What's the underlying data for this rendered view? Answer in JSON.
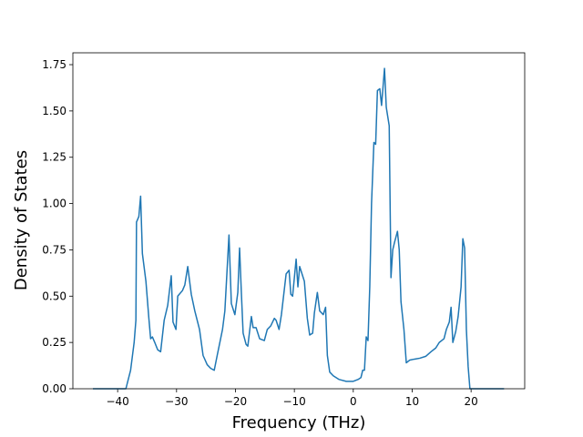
{
  "chart_data": {
    "type": "line",
    "xlabel": "Frequency (THz)",
    "ylabel": "Density of States",
    "color": "#1f77b4",
    "grid": false,
    "xlim": [
      -47.6,
      29.1
    ],
    "ylim": [
      0,
      1.814
    ],
    "xticks": [
      {
        "value": -40,
        "label": "−40"
      },
      {
        "value": -30,
        "label": "−30"
      },
      {
        "value": -20,
        "label": "−20"
      },
      {
        "value": -10,
        "label": "−10"
      },
      0,
      10,
      20
    ],
    "yticks": [
      {
        "value": 0,
        "label": "0.00"
      },
      {
        "value": 0.25,
        "label": "0.25"
      },
      {
        "value": 0.5,
        "label": "0.50"
      },
      {
        "value": 0.75,
        "label": "0.75"
      },
      {
        "value": 1,
        "label": "1.00"
      },
      {
        "value": 1.25,
        "label": "1.25"
      },
      {
        "value": 1.5,
        "label": "1.50"
      },
      {
        "value": 1.75,
        "label": "1.75"
      }
    ],
    "x": [
      -44.2,
      -38.6,
      -37.8,
      -37.2,
      -36.9,
      -36.8,
      -36.4,
      -36.1,
      -35.8,
      -35.2,
      -34.7,
      -34.4,
      -34.1,
      -33.7,
      -33.2,
      -32.7,
      -32.1,
      -31.5,
      -30.9,
      -30.6,
      -30.1,
      -29.8,
      -29.0,
      -28.6,
      -28.1,
      -27.5,
      -26.9,
      -26.1,
      -25.5,
      -24.8,
      -24.2,
      -23.6,
      -23.1,
      -22.2,
      -21.8,
      -21.1,
      -20.7,
      -20.1,
      -19.6,
      -19.3,
      -19.0,
      -18.7,
      -18.2,
      -17.9,
      -17.3,
      -17.0,
      -16.5,
      -15.9,
      -15.1,
      -14.6,
      -14.0,
      -13.4,
      -13.1,
      -12.6,
      -12.2,
      -11.4,
      -10.9,
      -10.6,
      -10.3,
      -9.7,
      -9.4,
      -9.1,
      -8.3,
      -7.8,
      -7.4,
      -6.9,
      -6.6,
      -6.1,
      -5.7,
      -5.1,
      -4.7,
      -4.4,
      -4.0,
      -3.4,
      -2.4,
      -1.2,
      0.0,
      0.8,
      1.3,
      1.6,
      1.9,
      2.2,
      2.5,
      2.8,
      3.1,
      3.5,
      3.8,
      4.1,
      4.5,
      4.8,
      5.3,
      5.6,
      6.1,
      6.4,
      6.7,
      7.0,
      7.5,
      7.8,
      8.1,
      8.6,
      9.0,
      9.6,
      10.4,
      11.3,
      12.3,
      13.2,
      14.0,
      14.6,
      15.4,
      15.8,
      16.3,
      16.6,
      16.9,
      17.4,
      17.8,
      18.3,
      18.6,
      18.9,
      19.2,
      19.5,
      19.8,
      25.6
    ],
    "values": [
      0,
      0,
      0.1,
      0.25,
      0.37,
      0.9,
      0.93,
      1.04,
      0.73,
      0.58,
      0.38,
      0.27,
      0.28,
      0.25,
      0.21,
      0.2,
      0.37,
      0.45,
      0.61,
      0.36,
      0.32,
      0.5,
      0.53,
      0.56,
      0.66,
      0.51,
      0.42,
      0.32,
      0.18,
      0.13,
      0.11,
      0.1,
      0.18,
      0.32,
      0.42,
      0.83,
      0.46,
      0.4,
      0.52,
      0.76,
      0.52,
      0.3,
      0.24,
      0.23,
      0.39,
      0.33,
      0.33,
      0.27,
      0.26,
      0.32,
      0.34,
      0.38,
      0.37,
      0.32,
      0.4,
      0.62,
      0.64,
      0.51,
      0.5,
      0.7,
      0.55,
      0.66,
      0.58,
      0.38,
      0.29,
      0.3,
      0.41,
      0.52,
      0.42,
      0.4,
      0.44,
      0.18,
      0.09,
      0.07,
      0.05,
      0.04,
      0.04,
      0.05,
      0.06,
      0.1,
      0.1,
      0.28,
      0.26,
      0.55,
      1.0,
      1.33,
      1.32,
      1.61,
      1.62,
      1.53,
      1.73,
      1.52,
      1.42,
      0.6,
      0.75,
      0.79,
      0.85,
      0.75,
      0.47,
      0.32,
      0.14,
      0.155,
      0.16,
      0.165,
      0.175,
      0.2,
      0.22,
      0.25,
      0.27,
      0.32,
      0.36,
      0.44,
      0.25,
      0.31,
      0.39,
      0.55,
      0.81,
      0.76,
      0.32,
      0.12,
      0,
      0
    ]
  }
}
